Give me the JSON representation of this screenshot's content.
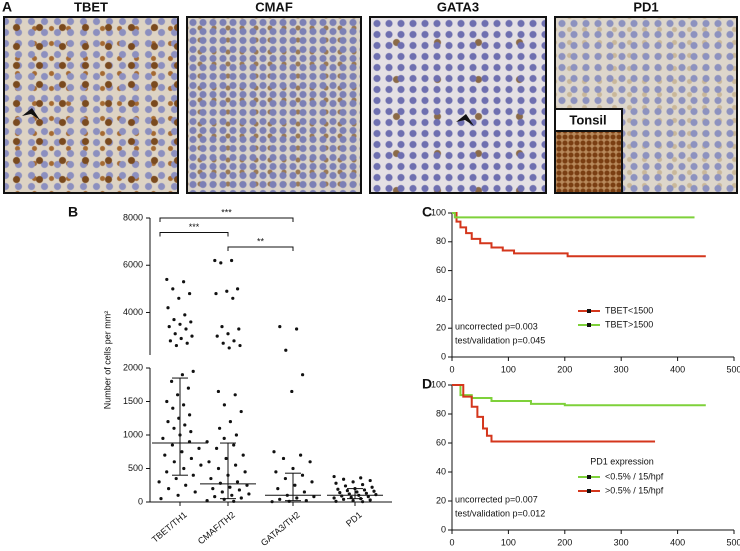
{
  "panel_a": {
    "label": "A",
    "images": [
      {
        "title": "TBET"
      },
      {
        "title": "CMAF"
      },
      {
        "title": "GATA3"
      },
      {
        "title": "PD1"
      }
    ],
    "inset": "Tonsil"
  },
  "chart_data": [
    {
      "type": "dotplot",
      "label": "B",
      "ylabel": "Number of cells per mm²",
      "categories": [
        "TBET/TH1",
        "CMAF/TH2",
        "GATA3/TH2",
        "PD1"
      ],
      "values": [
        [
          5400,
          5300,
          5000,
          4800,
          4600,
          4200,
          3900,
          3700,
          3600,
          3500,
          3400,
          3300,
          3100,
          3000,
          2900,
          2800,
          2700,
          2600,
          1950,
          1900,
          1800,
          1700,
          1600,
          1500,
          1450,
          1400,
          1300,
          1250,
          1200,
          1150,
          1100,
          1050,
          1000,
          950,
          900,
          850,
          800,
          750,
          700,
          650,
          600,
          550,
          500,
          450,
          400,
          350,
          300,
          250,
          200,
          150,
          100,
          50
        ],
        [
          6200,
          6200,
          6100,
          5000,
          4900,
          4800,
          4600,
          3400,
          3300,
          3100,
          3000,
          2800,
          2700,
          2600,
          2500,
          1650,
          1600,
          1450,
          1350,
          1200,
          1100,
          1000,
          950,
          900,
          850,
          800,
          700,
          650,
          600,
          550,
          500,
          450,
          400,
          350,
          300,
          280,
          250,
          220,
          200,
          180,
          150,
          120,
          100,
          80,
          60,
          40,
          20,
          10
        ],
        [
          3400,
          3300,
          2400,
          1900,
          1650,
          750,
          700,
          650,
          600,
          500,
          450,
          400,
          350,
          300,
          250,
          200,
          150,
          100,
          80,
          60,
          40,
          20,
          10,
          5
        ],
        [
          380,
          360,
          340,
          320,
          300,
          280,
          260,
          240,
          220,
          200,
          190,
          180,
          170,
          160,
          150,
          140,
          130,
          120,
          110,
          100,
          90,
          80,
          70,
          60,
          50,
          40,
          30,
          20,
          10,
          5
        ]
      ],
      "median": [
        880,
        270,
        100,
        100
      ],
      "q1": [
        400,
        50,
        20,
        50
      ],
      "q3": [
        1850,
        880,
        430,
        200
      ],
      "ylim_lower": [
        0,
        2000
      ],
      "yticks_lower": [
        0,
        500,
        1000,
        1500,
        2000
      ],
      "ylim_upper": [
        2200,
        8000
      ],
      "yticks_upper": [
        4000,
        6000,
        8000
      ],
      "brackets": [
        {
          "from": 0,
          "to": 2,
          "label": "***"
        },
        {
          "from": 0,
          "to": 1,
          "label": "***"
        },
        {
          "from": 1,
          "to": 2,
          "label": "**"
        }
      ]
    },
    {
      "type": "line",
      "label": "C",
      "step": true,
      "xlim": [
        0,
        500
      ],
      "xticks": [
        0,
        100,
        200,
        300,
        400,
        500
      ],
      "ylim": [
        0,
        100
      ],
      "yticks": [
        0,
        20,
        40,
        60,
        80,
        100
      ],
      "annotations": [
        "uncorrected p=0.003",
        "test/validation p=0.045"
      ],
      "series": [
        {
          "name": "TBET<1500",
          "color": "#d4361c",
          "x": [
            0,
            8,
            8,
            15,
            15,
            25,
            25,
            35,
            35,
            50,
            50,
            70,
            70,
            90,
            90,
            110,
            110,
            205,
            205,
            450
          ],
          "values": [
            100,
            100,
            94,
            94,
            90,
            90,
            86,
            86,
            82,
            82,
            79,
            79,
            76,
            76,
            74,
            74,
            72,
            72,
            70,
            70
          ]
        },
        {
          "name": "TBET>1500",
          "color": "#7ed13a",
          "x": [
            0,
            5,
            5,
            430
          ],
          "values": [
            100,
            100,
            97,
            97
          ]
        }
      ]
    },
    {
      "type": "line",
      "label": "D",
      "step": true,
      "xlim": [
        0,
        500
      ],
      "xticks": [
        0,
        100,
        200,
        300,
        400,
        500
      ],
      "ylim": [
        0,
        100
      ],
      "yticks": [
        0,
        20,
        40,
        60,
        80,
        100
      ],
      "legend_title": "PD1 expression",
      "annotations": [
        "uncorrected p=0.007",
        "test/validation p=0.012"
      ],
      "series": [
        {
          "name": "<0.5% / 15/hpf",
          "color": "#7ed13a",
          "x": [
            0,
            15,
            15,
            35,
            35,
            70,
            70,
            140,
            140,
            200,
            200,
            450
          ],
          "values": [
            100,
            100,
            93,
            93,
            91,
            91,
            89,
            89,
            87,
            87,
            86,
            86
          ]
        },
        {
          "name": ">0.5% / 15/hpf",
          "color": "#d4361c",
          "x": [
            0,
            20,
            20,
            35,
            35,
            45,
            45,
            55,
            55,
            62,
            62,
            70,
            70,
            360
          ],
          "values": [
            100,
            100,
            92,
            92,
            85,
            85,
            78,
            78,
            70,
            70,
            65,
            65,
            61,
            61
          ]
        }
      ]
    }
  ]
}
